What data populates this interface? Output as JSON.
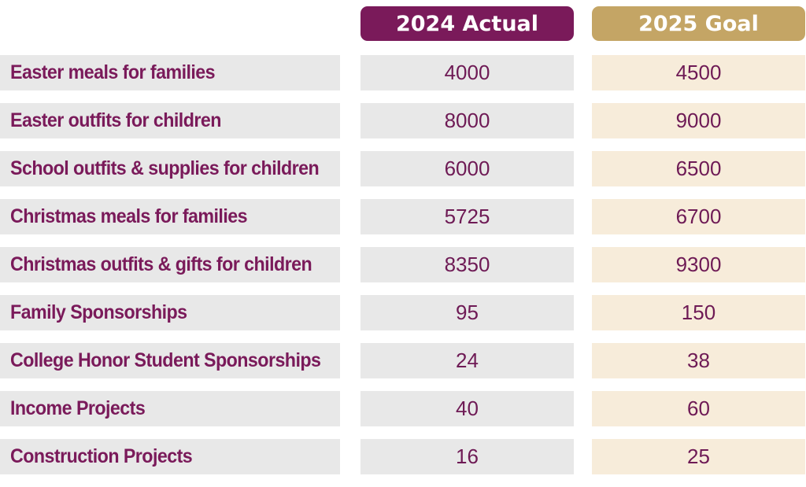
{
  "colors": {
    "primary": "#7a1a5a",
    "gold": "#c4a565",
    "label_bg": "#e8e8e8",
    "actual_bg": "#e8e8e8",
    "goal_bg": "#f7ecda",
    "value_text": "#6e1a55"
  },
  "chart_data": {
    "type": "table",
    "columns": [
      "2024 Actual",
      "2025 Goal"
    ],
    "rows": [
      {
        "label": "Easter meals for families",
        "actual": "4000",
        "goal": "4500"
      },
      {
        "label": "Easter outfits for children",
        "actual": "8000",
        "goal": "9000"
      },
      {
        "label": "School outfits & supplies for children",
        "actual": "6000",
        "goal": "6500"
      },
      {
        "label": "Christmas meals for families",
        "actual": "5725",
        "goal": "6700"
      },
      {
        "label": "Christmas outfits & gifts for children",
        "actual": "8350",
        "goal": "9300"
      },
      {
        "label": "Family Sponsorships",
        "actual": "95",
        "goal": "150"
      },
      {
        "label": "College Honor Student Sponsorships",
        "actual": "24",
        "goal": "38"
      },
      {
        "label": "Income Projects",
        "actual": "40",
        "goal": "60"
      },
      {
        "label": "Construction Projects",
        "actual": "16",
        "goal": "25"
      }
    ]
  }
}
